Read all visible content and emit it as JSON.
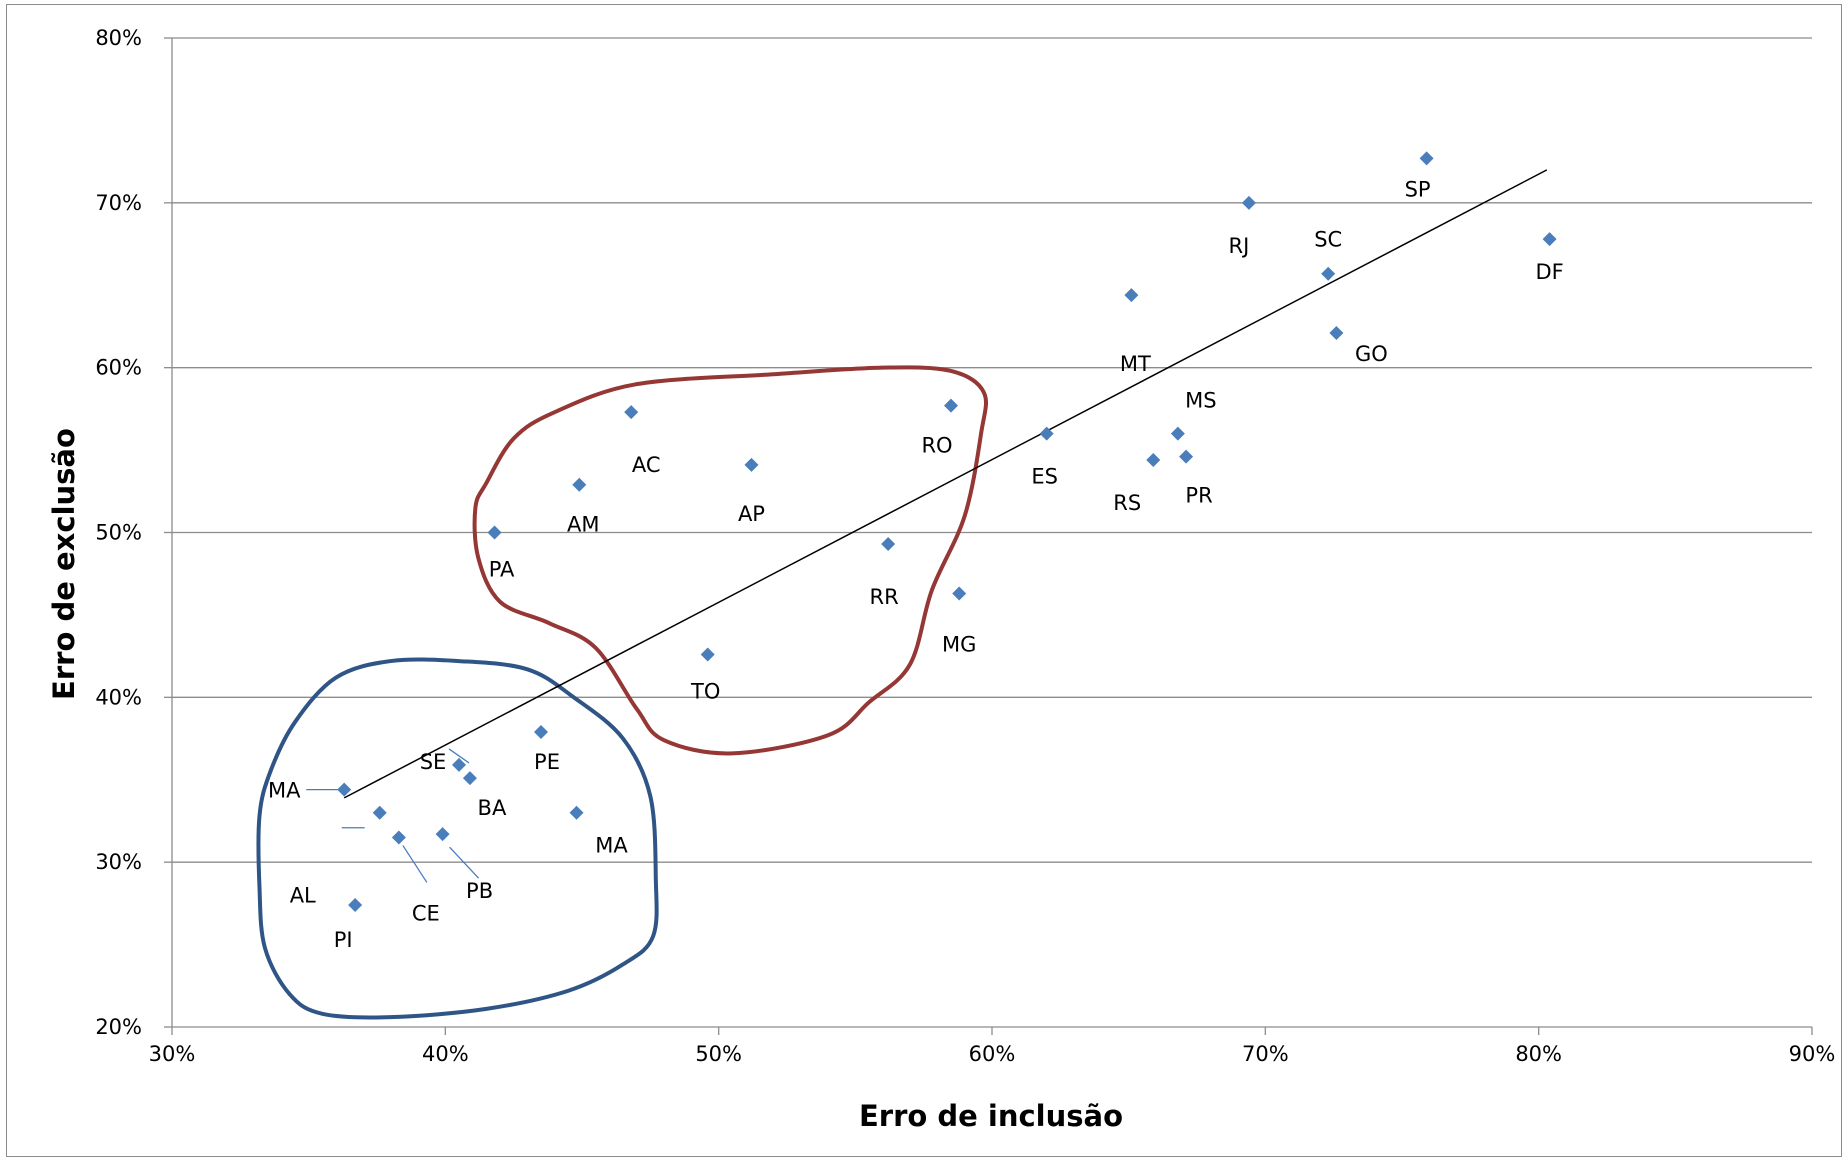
{
  "chart_data": {
    "type": "scatter",
    "xlabel": "Erro de inclusão",
    "ylabel": "Erro de  exclusão",
    "xlim": [
      0.3,
      0.9
    ],
    "ylim": [
      0.2,
      0.8
    ],
    "x_ticks": [
      0.3,
      0.4,
      0.5,
      0.6,
      0.7,
      0.8,
      0.9
    ],
    "x_tick_labels": [
      "30%",
      "40%",
      "50%",
      "60%",
      "70%",
      "80%",
      "90%"
    ],
    "y_ticks": [
      0.2,
      0.3,
      0.4,
      0.5,
      0.6,
      0.7,
      0.8
    ],
    "y_tick_labels": [
      "20%",
      "30%",
      "40%",
      "50%",
      "60%",
      "70%",
      "80%"
    ],
    "grid": "horizontal",
    "legend": "none",
    "marker_color": "#4a7ebb",
    "trendline": {
      "x": [
        0.363,
        0.803
      ],
      "y": [
        0.339,
        0.72
      ],
      "color": "#000000"
    },
    "points": [
      {
        "label": "MA",
        "x": 0.363,
        "y": 0.344
      },
      {
        "label": "AL",
        "x": 0.376,
        "y": 0.33
      },
      {
        "label": "CE",
        "x": 0.383,
        "y": 0.315
      },
      {
        "label": "PB",
        "x": 0.399,
        "y": 0.317
      },
      {
        "label": "PI",
        "x": 0.367,
        "y": 0.274
      },
      {
        "label": "SE",
        "x": 0.405,
        "y": 0.359
      },
      {
        "label": "BA",
        "x": 0.409,
        "y": 0.351
      },
      {
        "label": "PE",
        "x": 0.435,
        "y": 0.379
      },
      {
        "label": "MA",
        "x": 0.448,
        "y": 0.33
      },
      {
        "label": "PA",
        "x": 0.418,
        "y": 0.5
      },
      {
        "label": "AM",
        "x": 0.449,
        "y": 0.529
      },
      {
        "label": "AC",
        "x": 0.468,
        "y": 0.573
      },
      {
        "label": "AP",
        "x": 0.512,
        "y": 0.541
      },
      {
        "label": "TO",
        "x": 0.496,
        "y": 0.426
      },
      {
        "label": "RR",
        "x": 0.562,
        "y": 0.493
      },
      {
        "label": "MG",
        "x": 0.588,
        "y": 0.463
      },
      {
        "label": "RO",
        "x": 0.585,
        "y": 0.577
      },
      {
        "label": "ES",
        "x": 0.62,
        "y": 0.56
      },
      {
        "label": "MT",
        "x": 0.651,
        "y": 0.644
      },
      {
        "label": "RS",
        "x": 0.659,
        "y": 0.544
      },
      {
        "label": "MS",
        "x": 0.668,
        "y": 0.56
      },
      {
        "label": "PR",
        "x": 0.671,
        "y": 0.546
      },
      {
        "label": "RJ",
        "x": 0.694,
        "y": 0.7
      },
      {
        "label": "SC",
        "x": 0.723,
        "y": 0.657
      },
      {
        "label": "GO",
        "x": 0.726,
        "y": 0.621
      },
      {
        "label": "SP",
        "x": 0.759,
        "y": 0.727
      },
      {
        "label": "DF",
        "x": 0.804,
        "y": 0.678
      }
    ],
    "groups": [
      {
        "color": "#953735",
        "members": [
          "PA",
          "AM",
          "AC",
          "AP",
          "TO",
          "RR",
          "MG",
          "RO"
        ]
      },
      {
        "color": "#2f5586",
        "members": [
          "MA",
          "AL",
          "CE",
          "PB",
          "PI",
          "SE",
          "BA",
          "PE"
        ]
      }
    ]
  }
}
